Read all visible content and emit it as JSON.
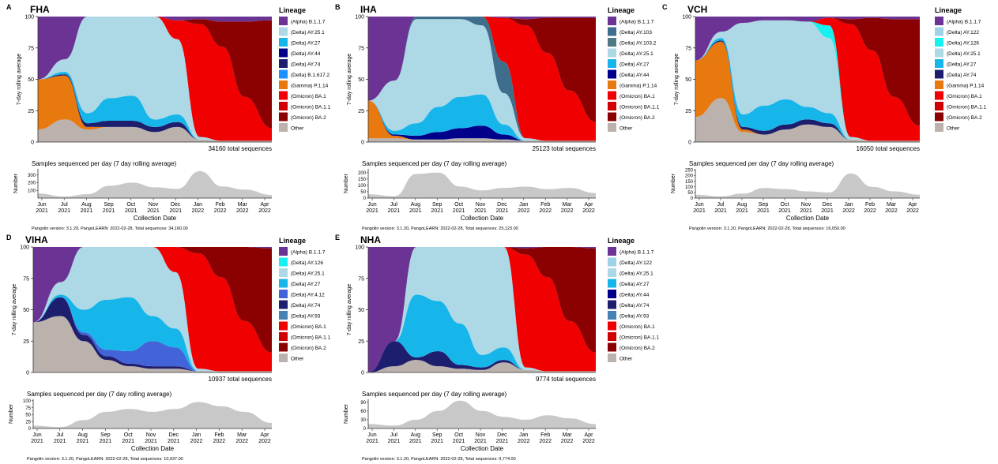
{
  "x_months": [
    "Jun\n2021",
    "Jul\n2021",
    "Aug\n2021",
    "Sep\n2021",
    "Oct\n2021",
    "Nov\n2021",
    "Dec\n2021",
    "Jan\n2022",
    "Feb\n2022",
    "Mar\n2022",
    "Apr\n2022"
  ],
  "y_ticks": [
    0,
    25,
    50,
    75,
    100
  ],
  "ylabel": "7-day rolling average",
  "count_title": "Samples sequenced per day (7 day rolling average)",
  "count_ylabel": "Number",
  "xlabel": "Collection Date",
  "legend_title": "Lineage",
  "colors": {
    "(Alpha) B.1.1.7": "#6B3393",
    "(Delta) AY.103": "#3F6E8C",
    "(Delta) AY.103.2": "#4E7A84",
    "(Delta) AY.122": "#9ED3E6",
    "(Delta) AY.126": "#16F0F0",
    "(Delta) AY.25.1": "#ADD8E6",
    "(Delta) AY.27": "#17B6EA",
    "(Delta) AY.4.12": "#4363D8",
    "(Delta) AY.44": "#00008B",
    "(Delta) AY.74": "#1E1E6E",
    "(Delta) AY.93": "#4682B4",
    "(Delta) B.1.617.2": "#1E90FF",
    "(Gamma) P.1.14": "#E8790E",
    "(Omicron) BA.1": "#F00000",
    "(Omicron) BA.1.1": "#D00000",
    "(Omicron) BA.2": "#8B0000",
    "Other": "#BBB1AD",
    "count_fill": "#C8C8C8"
  },
  "panels": [
    {
      "letter": "A",
      "title": "FHA",
      "total": "34160 total sequences",
      "footer": "Pangolin version: 3.1.20,  PangoLEARN: 2022-02-28, Total sequences: 34,160.00",
      "count_ticks": [
        100,
        200,
        300
      ],
      "count_max": 380,
      "legend": [
        "(Alpha) B.1.1.7",
        "(Delta) AY.25.1",
        "(Delta) AY.27",
        "(Delta) AY.44",
        "(Delta) AY.74",
        "(Delta) B.1.617.2",
        "(Gamma) P.1.14",
        "(Omicron) BA.1",
        "(Omicron) BA.1.1",
        "(Omicron) BA.2",
        "Other"
      ]
    },
    {
      "letter": "B",
      "title": "IHA",
      "total": "25123 total sequences",
      "footer": "Pangolin version: 3.1.20,  PangoLEARN: 2022-02-28, Total sequences: 25,123.00",
      "count_ticks": [
        0,
        50,
        100,
        150,
        200
      ],
      "count_max": 230,
      "legend": [
        "(Alpha) B.1.1.7",
        "(Delta) AY.103",
        "(Delta) AY.103.2",
        "(Delta) AY.25.1",
        "(Delta) AY.27",
        "(Delta) AY.44",
        "(Gamma) P.1.14",
        "(Omicron) BA.1",
        "(Omicron) BA.1.1",
        "(Omicron) BA.2",
        "Other"
      ]
    },
    {
      "letter": "C",
      "title": "VCH",
      "total": "16050 total sequences",
      "footer": "Pangolin version: 3.1.20,  PangoLEARN: 2022-02-28, Total sequences: 16,050.00",
      "count_ticks": [
        0,
        50,
        100,
        150,
        200,
        250
      ],
      "count_max": 260,
      "legend": [
        "(Alpha) B.1.1.7",
        "(Delta) AY.122",
        "(Delta) AY.126",
        "(Delta) AY.25.1",
        "(Delta) AY.27",
        "(Delta) AY.74",
        "(Gamma) P.1.14",
        "(Omicron) BA.1",
        "(Omicron) BA.1.1",
        "(Omicron) BA.2",
        "Other"
      ]
    },
    {
      "letter": "D",
      "title": "VIHA",
      "total": "10937 total sequences",
      "footer": "Pangolin version: 3.1.20,  PangoLEARN: 2022-02-28, Total sequences: 10,937.00",
      "count_ticks": [
        0,
        25,
        50,
        75,
        100
      ],
      "count_max": 105,
      "legend": [
        "(Alpha) B.1.1.7",
        "(Delta) AY.126",
        "(Delta) AY.25.1",
        "(Delta) AY.27",
        "(Delta) AY.4.12",
        "(Delta) AY.74",
        "(Delta) AY.93",
        "(Omicron) BA.1",
        "(Omicron) BA.1.1",
        "(Omicron) BA.2",
        "Other"
      ]
    },
    {
      "letter": "E",
      "title": "NHA",
      "total": "9774 total sequences",
      "footer": "Pangolin version: 3.1.20,  PangoLEARN: 2022-02-28, Total sequences: 9,774.00",
      "count_ticks": [
        0,
        30,
        60,
        90
      ],
      "count_max": 100,
      "legend": [
        "(Alpha) B.1.1.7",
        "(Delta) AY.122",
        "(Delta) AY.25.1",
        "(Delta) AY.27",
        "(Delta) AY.44",
        "(Delta) AY.74",
        "(Delta) AY.93",
        "(Omicron) BA.1",
        "(Omicron) BA.1.1",
        "(Omicron) BA.2",
        "Other"
      ]
    }
  ],
  "chart_data": [
    {
      "type": "area",
      "title": "FHA",
      "ylabel": "7-day rolling average",
      "ylim": [
        0,
        100
      ],
      "x": [
        "2021-06",
        "2021-07",
        "2021-08",
        "2021-09",
        "2021-10",
        "2021-11",
        "2021-12",
        "2022-01",
        "2022-02",
        "2022-03",
        "2022-04"
      ],
      "series": [
        {
          "name": "Other",
          "values": [
            10,
            18,
            10,
            12,
            12,
            8,
            12,
            2,
            1,
            1,
            1
          ]
        },
        {
          "name": "(Gamma) P.1.14",
          "values": [
            40,
            35,
            2,
            0,
            0,
            0,
            0,
            0,
            0,
            0,
            0
          ]
        },
        {
          "name": "(Delta) AY.74",
          "values": [
            0,
            1,
            3,
            5,
            5,
            4,
            4,
            0,
            0,
            0,
            0
          ]
        },
        {
          "name": "(Delta) AY.27",
          "values": [
            0,
            2,
            8,
            18,
            20,
            6,
            6,
            0,
            0,
            0,
            0
          ]
        },
        {
          "name": "(Delta) AY.25.1",
          "values": [
            0,
            10,
            77,
            65,
            63,
            82,
            60,
            2,
            0,
            0,
            0
          ]
        },
        {
          "name": "(Omicron) BA.1",
          "values": [
            0,
            0,
            0,
            0,
            0,
            0,
            15,
            90,
            75,
            35,
            10
          ]
        },
        {
          "name": "(Omicron) BA.2",
          "values": [
            0,
            0,
            0,
            0,
            0,
            0,
            0,
            4,
            20,
            60,
            86
          ]
        },
        {
          "name": "(Alpha) B.1.1.7",
          "values": [
            45,
            30,
            0,
            0,
            0,
            0,
            0,
            0,
            0,
            0,
            0
          ]
        }
      ]
    },
    {
      "type": "area",
      "title": "Samples sequenced per day (7 day rolling average)",
      "ylabel": "Number",
      "panel": "FHA",
      "x": [
        "2021-06",
        "2021-07",
        "2021-08",
        "2021-09",
        "2021-10",
        "2021-11",
        "2021-12",
        "2022-01",
        "2022-02",
        "2022-03",
        "2022-04"
      ],
      "values": [
        60,
        20,
        50,
        160,
        200,
        140,
        120,
        350,
        150,
        110,
        40
      ]
    },
    {
      "type": "area",
      "title": "IHA",
      "ylabel": "7-day rolling average",
      "ylim": [
        0,
        100
      ],
      "x": [
        "2021-06",
        "2021-07",
        "2021-08",
        "2021-09",
        "2021-10",
        "2021-11",
        "2021-12",
        "2022-01",
        "2022-02",
        "2022-03",
        "2022-04"
      ],
      "series": [
        {
          "name": "Other",
          "values": [
            3,
            3,
            2,
            2,
            3,
            3,
            2,
            1,
            1,
            1,
            1
          ]
        },
        {
          "name": "(Gamma) P.1.14",
          "values": [
            30,
            2,
            0,
            0,
            0,
            0,
            0,
            0,
            0,
            0,
            0
          ]
        },
        {
          "name": "(Delta) AY.44",
          "values": [
            0,
            1,
            3,
            6,
            8,
            10,
            4,
            0,
            0,
            0,
            0
          ]
        },
        {
          "name": "(Delta) AY.27",
          "values": [
            0,
            3,
            10,
            20,
            25,
            25,
            8,
            0,
            0,
            0,
            0
          ]
        },
        {
          "name": "(Delta) AY.25.1",
          "values": [
            0,
            40,
            83,
            70,
            62,
            55,
            25,
            2,
            0,
            0,
            0
          ]
        },
        {
          "name": "(Delta) AY.103",
          "values": [
            0,
            0,
            2,
            2,
            2,
            7,
            25,
            0,
            0,
            0,
            0
          ]
        },
        {
          "name": "(Omicron) BA.1",
          "values": [
            0,
            0,
            0,
            0,
            0,
            0,
            35,
            90,
            70,
            40,
            15
          ]
        },
        {
          "name": "(Omicron) BA.2",
          "values": [
            0,
            0,
            0,
            0,
            0,
            0,
            0,
            5,
            28,
            58,
            83
          ]
        },
        {
          "name": "(Alpha) B.1.1.7",
          "values": [
            65,
            50,
            0,
            0,
            0,
            0,
            0,
            0,
            0,
            0,
            0
          ]
        }
      ]
    },
    {
      "type": "area",
      "title": "Samples sequenced per day (7 day rolling average)",
      "ylabel": "Number",
      "panel": "IHA",
      "x": [
        "2021-06",
        "2021-07",
        "2021-08",
        "2021-09",
        "2021-10",
        "2021-11",
        "2021-12",
        "2022-01",
        "2022-02",
        "2022-03",
        "2022-04"
      ],
      "values": [
        30,
        15,
        190,
        200,
        90,
        60,
        80,
        90,
        70,
        80,
        40
      ]
    },
    {
      "type": "area",
      "title": "VCH",
      "ylabel": "7-day rolling average",
      "ylim": [
        0,
        100
      ],
      "x": [
        "2021-06",
        "2021-07",
        "2021-08",
        "2021-09",
        "2021-10",
        "2021-11",
        "2021-12",
        "2022-01",
        "2022-02",
        "2022-03",
        "2022-04"
      ],
      "series": [
        {
          "name": "Other",
          "values": [
            20,
            35,
            8,
            6,
            10,
            14,
            12,
            2,
            1,
            1,
            1
          ]
        },
        {
          "name": "(Gamma) P.1.14",
          "values": [
            45,
            45,
            2,
            0,
            0,
            0,
            0,
            0,
            0,
            0,
            0
          ]
        },
        {
          "name": "(Delta) AY.74",
          "values": [
            0,
            1,
            2,
            3,
            4,
            4,
            3,
            0,
            0,
            0,
            0
          ]
        },
        {
          "name": "(Delta) AY.27",
          "values": [
            0,
            2,
            10,
            20,
            20,
            10,
            8,
            0,
            0,
            0,
            0
          ]
        },
        {
          "name": "(Delta) AY.25.1",
          "values": [
            0,
            5,
            73,
            68,
            63,
            68,
            60,
            2,
            0,
            0,
            0
          ]
        },
        {
          "name": "(Delta) AY.126",
          "values": [
            0,
            0,
            0,
            0,
            0,
            0,
            10,
            0,
            0,
            0,
            0
          ]
        },
        {
          "name": "(Omicron) BA.1",
          "values": [
            0,
            0,
            0,
            0,
            0,
            0,
            6,
            90,
            72,
            35,
            12
          ]
        },
        {
          "name": "(Omicron) BA.2",
          "values": [
            0,
            0,
            0,
            0,
            0,
            0,
            0,
            4,
            26,
            62,
            85
          ]
        },
        {
          "name": "(Alpha) B.1.1.7",
          "values": [
            35,
            12,
            5,
            3,
            3,
            4,
            1,
            2,
            1,
            2,
            2
          ]
        }
      ]
    },
    {
      "type": "area",
      "title": "Samples sequenced per day (7 day rolling average)",
      "ylabel": "Number",
      "panel": "VCH",
      "x": [
        "2021-06",
        "2021-07",
        "2021-08",
        "2021-09",
        "2021-10",
        "2021-11",
        "2021-12",
        "2022-01",
        "2022-02",
        "2022-03",
        "2022-04"
      ],
      "values": [
        30,
        15,
        40,
        90,
        80,
        60,
        50,
        220,
        100,
        60,
        30
      ]
    },
    {
      "type": "area",
      "title": "VIHA",
      "ylabel": "7-day rolling average",
      "ylim": [
        0,
        100
      ],
      "x": [
        "2021-06",
        "2021-07",
        "2021-08",
        "2021-09",
        "2021-10",
        "2021-11",
        "2021-12",
        "2022-01",
        "2022-02",
        "2022-03",
        "2022-04"
      ],
      "series": [
        {
          "name": "Other",
          "values": [
            40,
            45,
            25,
            10,
            5,
            3,
            3,
            1,
            1,
            1,
            1
          ]
        },
        {
          "name": "(Delta) AY.74",
          "values": [
            0,
            15,
            5,
            3,
            2,
            2,
            2,
            0,
            0,
            0,
            0
          ]
        },
        {
          "name": "(Delta) AY.4.12",
          "values": [
            0,
            0,
            2,
            5,
            10,
            20,
            15,
            0,
            0,
            0,
            0
          ]
        },
        {
          "name": "(Delta) AY.27",
          "values": [
            0,
            2,
            18,
            40,
            43,
            20,
            15,
            0,
            0,
            0,
            0
          ]
        },
        {
          "name": "(Delta) AY.25.1",
          "values": [
            0,
            10,
            50,
            42,
            40,
            55,
            45,
            2,
            0,
            0,
            0
          ]
        },
        {
          "name": "(Omicron) BA.1",
          "values": [
            0,
            0,
            0,
            0,
            0,
            0,
            20,
            92,
            75,
            40,
            15
          ]
        },
        {
          "name": "(Omicron) BA.2",
          "values": [
            0,
            0,
            0,
            0,
            0,
            0,
            0,
            5,
            24,
            59,
            83
          ]
        },
        {
          "name": "(Alpha) B.1.1.7",
          "values": [
            60,
            28,
            0,
            0,
            0,
            0,
            0,
            0,
            0,
            0,
            0
          ]
        }
      ]
    },
    {
      "type": "area",
      "title": "Samples sequenced per day (7 day rolling average)",
      "ylabel": "Number",
      "panel": "VIHA",
      "x": [
        "2021-06",
        "2021-07",
        "2021-08",
        "2021-09",
        "2021-10",
        "2021-11",
        "2021-12",
        "2022-01",
        "2022-02",
        "2022-03",
        "2022-04"
      ],
      "values": [
        10,
        5,
        30,
        60,
        70,
        60,
        70,
        95,
        80,
        60,
        20
      ]
    },
    {
      "type": "area",
      "title": "NHA",
      "ylabel": "7-day rolling average",
      "ylim": [
        0,
        100
      ],
      "x": [
        "2021-06",
        "2021-07",
        "2021-08",
        "2021-09",
        "2021-10",
        "2021-11",
        "2021-12",
        "2022-01",
        "2022-02",
        "2022-03",
        "2022-04"
      ],
      "series": [
        {
          "name": "Other",
          "values": [
            0,
            5,
            10,
            5,
            3,
            2,
            8,
            2,
            1,
            1,
            1
          ]
        },
        {
          "name": "(Delta) AY.74",
          "values": [
            0,
            20,
            2,
            12,
            3,
            2,
            2,
            0,
            0,
            0,
            0
          ]
        },
        {
          "name": "(Delta) AY.27",
          "values": [
            0,
            0,
            50,
            40,
            33,
            10,
            10,
            0,
            0,
            0,
            0
          ]
        },
        {
          "name": "(Delta) AY.25.1",
          "values": [
            0,
            0,
            38,
            43,
            61,
            86,
            80,
            2,
            0,
            0,
            0
          ]
        },
        {
          "name": "(Omicron) BA.1",
          "values": [
            0,
            0,
            0,
            0,
            0,
            0,
            0,
            90,
            75,
            40,
            15
          ]
        },
        {
          "name": "(Omicron) BA.2",
          "values": [
            0,
            0,
            0,
            0,
            0,
            0,
            0,
            5,
            24,
            59,
            83
          ]
        },
        {
          "name": "(Alpha) B.1.1.7",
          "values": [
            100,
            75,
            0,
            0,
            0,
            0,
            0,
            0,
            0,
            0,
            0
          ]
        }
      ]
    },
    {
      "type": "area",
      "title": "Samples sequenced per day (7 day rolling average)",
      "ylabel": "Number",
      "panel": "NHA",
      "x": [
        "2021-06",
        "2021-07",
        "2021-08",
        "2021-09",
        "2021-10",
        "2021-11",
        "2021-12",
        "2022-01",
        "2022-02",
        "2022-03",
        "2022-04"
      ],
      "values": [
        15,
        10,
        30,
        60,
        95,
        60,
        40,
        30,
        45,
        35,
        15
      ]
    }
  ]
}
